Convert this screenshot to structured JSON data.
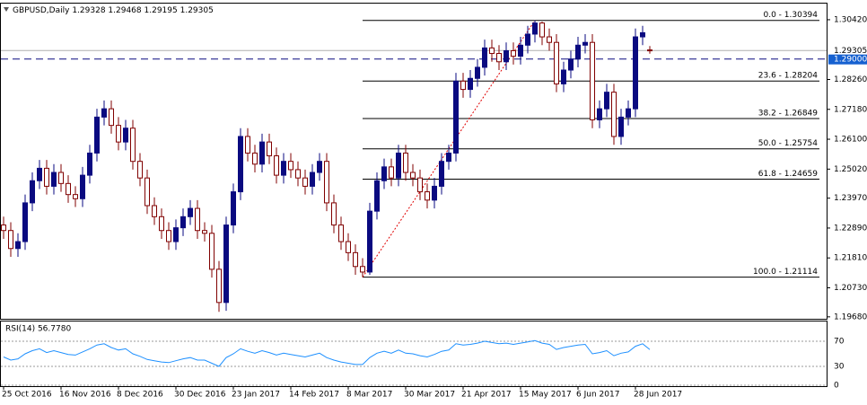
{
  "chart_data": {
    "type": "candlestick",
    "symbol": "GBPUSD,Daily",
    "categories": [
      "25 Oct 2016",
      null,
      null,
      null,
      null,
      null,
      null,
      null,
      "16 Nov 2016",
      null,
      null,
      null,
      null,
      null,
      null,
      null,
      "8 Dec 2016",
      null,
      null,
      null,
      null,
      null,
      null,
      null,
      "30 Dec 2016",
      null,
      null,
      null,
      null,
      null,
      null,
      null,
      "23 Jan 2017",
      null,
      null,
      null,
      null,
      null,
      null,
      null,
      "14 Feb 2017",
      null,
      null,
      null,
      null,
      null,
      null,
      null,
      "8 Mar 2017",
      null,
      null,
      null,
      null,
      null,
      null,
      null,
      "30 Mar 2017",
      null,
      null,
      null,
      null,
      null,
      null,
      null,
      "21 Apr 2017",
      null,
      null,
      null,
      null,
      null,
      null,
      null,
      "15 May 2017",
      null,
      null,
      null,
      null,
      null,
      null,
      null,
      "6 Jun 2017",
      null,
      null,
      null,
      null,
      null,
      null,
      null,
      "28 Jun 2017",
      null,
      null
    ],
    "open": [
      1.23,
      1.228,
      1.2215,
      1.224,
      1.238,
      1.246,
      1.2505,
      1.244,
      1.249,
      1.245,
      1.241,
      1.2395,
      1.248,
      1.256,
      1.269,
      1.272,
      1.266,
      1.26,
      1.265,
      1.253,
      1.247,
      1.237,
      1.233,
      1.228,
      1.224,
      1.229,
      1.233,
      1.236,
      1.228,
      1.227,
      1.214,
      1.202,
      1.23,
      1.242,
      1.262,
      1.256,
      1.252,
      1.26,
      1.255,
      1.248,
      1.253,
      1.25,
      1.247,
      1.244,
      1.249,
      1.253,
      1.238,
      1.23,
      1.224,
      1.22,
      1.215,
      1.213,
      1.235,
      1.246,
      1.251,
      1.247,
      1.256,
      1.249,
      1.247,
      1.242,
      1.239,
      1.244,
      1.253,
      1.256,
      1.282,
      1.279,
      1.283,
      1.287,
      1.294,
      1.292,
      1.289,
      1.293,
      1.291,
      1.295,
      1.299,
      1.303,
      1.298,
      1.296,
      1.281,
      1.286,
      1.29,
      1.295,
      1.296,
      1.268,
      1.272,
      1.278,
      1.262,
      1.269,
      1.272,
      1.298,
      1.29328
    ],
    "high": [
      1.233,
      1.231,
      1.227,
      1.241,
      1.249,
      1.2535,
      1.2535,
      1.252,
      1.252,
      1.248,
      1.244,
      1.251,
      1.259,
      1.272,
      1.275,
      1.275,
      1.269,
      1.268,
      1.268,
      1.256,
      1.25,
      1.24,
      1.236,
      1.231,
      1.232,
      1.236,
      1.239,
      1.239,
      1.231,
      1.23,
      1.217,
      1.233,
      1.245,
      1.265,
      1.265,
      1.259,
      1.263,
      1.263,
      1.258,
      1.256,
      1.256,
      1.253,
      1.25,
      1.252,
      1.256,
      1.256,
      1.241,
      1.233,
      1.227,
      1.223,
      1.218,
      1.238,
      1.249,
      1.254,
      1.254,
      1.259,
      1.259,
      1.252,
      1.25,
      1.245,
      1.247,
      1.256,
      1.259,
      1.285,
      1.285,
      1.286,
      1.29,
      1.297,
      1.297,
      1.295,
      1.296,
      1.296,
      1.298,
      1.302,
      1.30394,
      1.3035,
      1.301,
      1.299,
      1.289,
      1.293,
      1.298,
      1.299,
      1.299,
      1.275,
      1.281,
      1.281,
      1.272,
      1.275,
      1.301,
      1.302,
      1.29468
    ],
    "low": [
      1.225,
      1.2185,
      1.2185,
      1.221,
      1.235,
      1.243,
      1.241,
      1.241,
      1.242,
      1.238,
      1.2365,
      1.2365,
      1.245,
      1.253,
      1.266,
      1.263,
      1.257,
      1.257,
      1.25,
      1.244,
      1.234,
      1.23,
      1.225,
      1.221,
      1.221,
      1.226,
      1.23,
      1.225,
      1.224,
      1.211,
      1.1986,
      1.199,
      1.227,
      1.239,
      1.253,
      1.249,
      1.249,
      1.252,
      1.245,
      1.245,
      1.247,
      1.244,
      1.241,
      1.241,
      1.246,
      1.235,
      1.227,
      1.221,
      1.217,
      1.212,
      1.21114,
      1.212,
      1.232,
      1.243,
      1.244,
      1.244,
      1.246,
      1.244,
      1.239,
      1.236,
      1.236,
      1.241,
      1.25,
      1.253,
      1.276,
      1.276,
      1.28,
      1.284,
      1.289,
      1.286,
      1.286,
      1.288,
      1.288,
      1.292,
      1.296,
      1.295,
      1.293,
      1.278,
      1.278,
      1.283,
      1.287,
      1.292,
      1.265,
      1.265,
      1.269,
      1.259,
      1.259,
      1.266,
      1.269,
      1.295,
      1.29195
    ],
    "close": [
      1.228,
      1.2215,
      1.224,
      1.238,
      1.246,
      1.2505,
      1.244,
      1.249,
      1.245,
      1.241,
      1.2395,
      1.248,
      1.256,
      1.269,
      1.272,
      1.266,
      1.26,
      1.265,
      1.253,
      1.247,
      1.237,
      1.233,
      1.228,
      1.224,
      1.229,
      1.233,
      1.236,
      1.228,
      1.227,
      1.214,
      1.202,
      1.23,
      1.242,
      1.262,
      1.256,
      1.252,
      1.26,
      1.255,
      1.248,
      1.253,
      1.25,
      1.247,
      1.244,
      1.249,
      1.253,
      1.238,
      1.23,
      1.224,
      1.22,
      1.215,
      1.213,
      1.235,
      1.246,
      1.251,
      1.247,
      1.256,
      1.249,
      1.247,
      1.242,
      1.239,
      1.244,
      1.253,
      1.256,
      1.282,
      1.279,
      1.283,
      1.287,
      1.294,
      1.292,
      1.289,
      1.293,
      1.291,
      1.295,
      1.299,
      1.303,
      1.298,
      1.296,
      1.281,
      1.286,
      1.29,
      1.295,
      1.296,
      1.268,
      1.272,
      1.278,
      1.262,
      1.269,
      1.272,
      1.298,
      1.2995,
      1.29305
    ],
    "up_color": "#0a0a80",
    "down_color": "#800000",
    "ylim": [
      1.1961,
      1.3097
    ],
    "yticks": [
      {
        "value": 1.3042,
        "label": "1.30420"
      },
      {
        "value": 1.2826,
        "label": "1.28260"
      },
      {
        "value": 1.2718,
        "label": "1.27180"
      },
      {
        "value": 1.261,
        "label": "1.26100"
      },
      {
        "value": 1.2502,
        "label": "1.25020"
      },
      {
        "value": 1.2397,
        "label": "1.23970"
      },
      {
        "value": 1.2289,
        "label": "1.22890"
      },
      {
        "value": 1.2181,
        "label": "1.21810"
      },
      {
        "value": 1.2073,
        "label": "1.20730"
      },
      {
        "value": 1.1968,
        "label": "1.19680"
      }
    ],
    "last_price": 1.29305,
    "bid_line": {
      "value": 1.29,
      "label": "1.29000"
    },
    "fibonacci": [
      {
        "label": "0.0 - 1.30394",
        "value": 1.30394
      },
      {
        "label": "23.6 - 1.28204",
        "value": 1.28204
      },
      {
        "label": "38.2 - 1.26849",
        "value": 1.26849
      },
      {
        "label": "50.0 - 1.25754",
        "value": 1.25754
      },
      {
        "label": "61.8 - 1.24659",
        "value": 1.24659
      },
      {
        "label": "100.0 - 1.21114",
        "value": 1.21114
      }
    ],
    "rsi": {
      "label": "RSI(14) 56.7780",
      "color": "#1e90ff",
      "ylim": [
        0,
        100
      ],
      "yticks": [
        0,
        30,
        70
      ],
      "values": [
        45,
        40,
        42,
        50,
        55,
        58,
        52,
        55,
        52,
        49,
        48,
        53,
        58,
        64,
        66,
        60,
        56,
        58,
        50,
        46,
        41,
        39,
        37,
        36,
        39,
        42,
        44,
        40,
        40,
        35,
        30,
        44,
        50,
        58,
        54,
        51,
        55,
        52,
        48,
        51,
        49,
        47,
        45,
        48,
        51,
        44,
        40,
        37,
        35,
        33,
        33,
        44,
        51,
        54,
        51,
        56,
        51,
        50,
        47,
        45,
        49,
        54,
        56,
        66,
        64,
        65,
        67,
        70,
        68,
        66,
        67,
        65,
        67,
        69,
        71,
        67,
        65,
        57,
        60,
        62,
        64,
        65,
        50,
        52,
        55,
        47,
        51,
        53,
        62,
        66,
        56.778
      ]
    }
  }
}
